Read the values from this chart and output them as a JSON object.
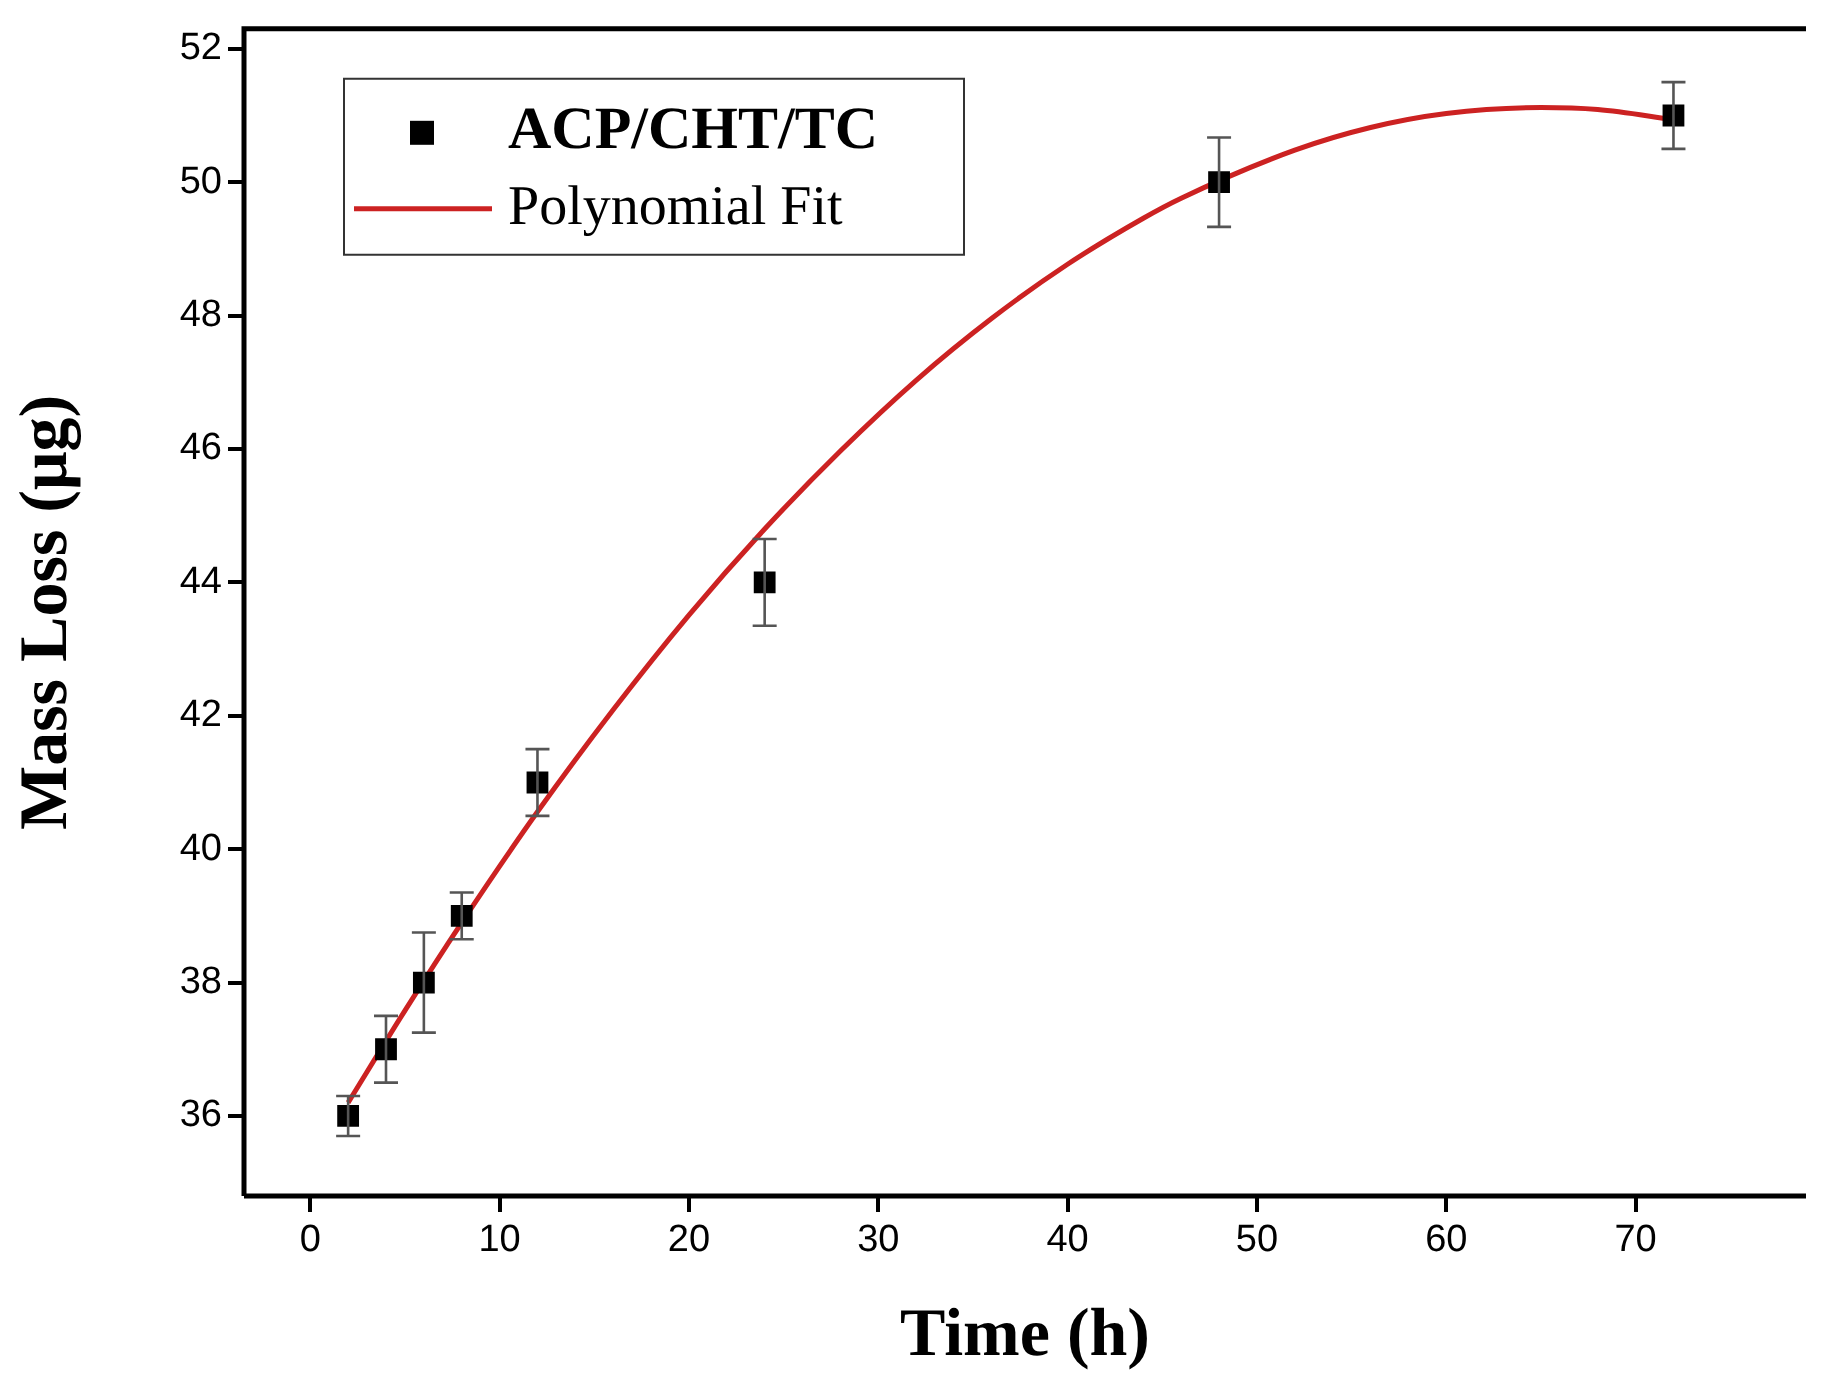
{
  "chart_data": {
    "type": "scatter",
    "xlabel": "Time (h)",
    "ylabel": "Mass Loss (μg)",
    "xlim": [
      -3.5,
      79
    ],
    "xticks": [
      0,
      10,
      20,
      30,
      40,
      50,
      60,
      70
    ],
    "ylim": [
      34.8,
      52.3
    ],
    "yticks": [
      36,
      38,
      40,
      42,
      44,
      46,
      48,
      50,
      52
    ],
    "grid": false,
    "legend": "top left",
    "series": [
      {
        "name": "ACP/CHT/TC",
        "type": "scatter",
        "color": "#000000",
        "marker": "square",
        "x": [
          2,
          4,
          6,
          8,
          12,
          24,
          48,
          72
        ],
        "values": [
          36,
          37,
          38,
          39,
          41,
          44,
          50,
          51
        ],
        "errors": [
          0.3,
          0.5,
          0.75,
          0.35,
          0.5,
          0.65,
          0.67,
          0.5
        ]
      },
      {
        "name": "Polynomial Fit",
        "type": "line",
        "color": "#cc2222",
        "marker": "none",
        "line_style": "solid",
        "x": [
          2,
          5,
          8,
          12,
          16,
          20,
          24,
          28,
          32,
          36,
          40,
          44,
          46,
          52,
          56,
          60,
          65,
          68,
          72
        ],
        "values": [
          36.2,
          37.58,
          38.9,
          40.56,
          42.09,
          43.51,
          44.8,
          45.97,
          47.03,
          47.96,
          48.77,
          49.46,
          49.76,
          50.48,
          50.82,
          51.03,
          51.12,
          51.09,
          50.94
        ]
      }
    ]
  }
}
